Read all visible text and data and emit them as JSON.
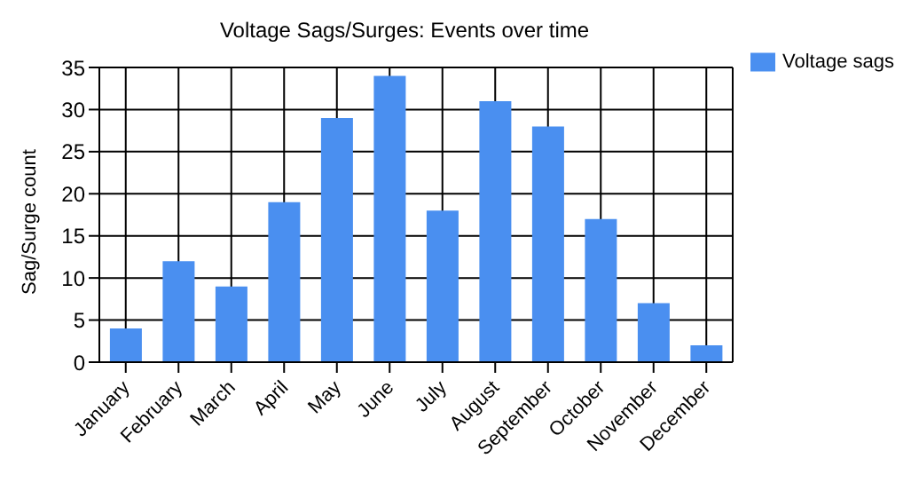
{
  "chart_data": {
    "type": "bar",
    "title": "Voltage Sags/Surges: Events over time",
    "ylabel": "Sag/Surge count",
    "categories": [
      "January",
      "February",
      "March",
      "April",
      "May",
      "June",
      "July",
      "August",
      "September",
      "October",
      "November",
      "December"
    ],
    "series": [
      {
        "name": "Voltage sags",
        "color": "#4a8ff0",
        "values": [
          4,
          12,
          9,
          19,
          29,
          34,
          18,
          31,
          28,
          17,
          7,
          2
        ]
      }
    ],
    "ylim": [
      0,
      35
    ],
    "yticks": [
      0,
      5,
      10,
      15,
      20,
      25,
      30,
      35
    ],
    "grid": true,
    "legend": "top right"
  }
}
